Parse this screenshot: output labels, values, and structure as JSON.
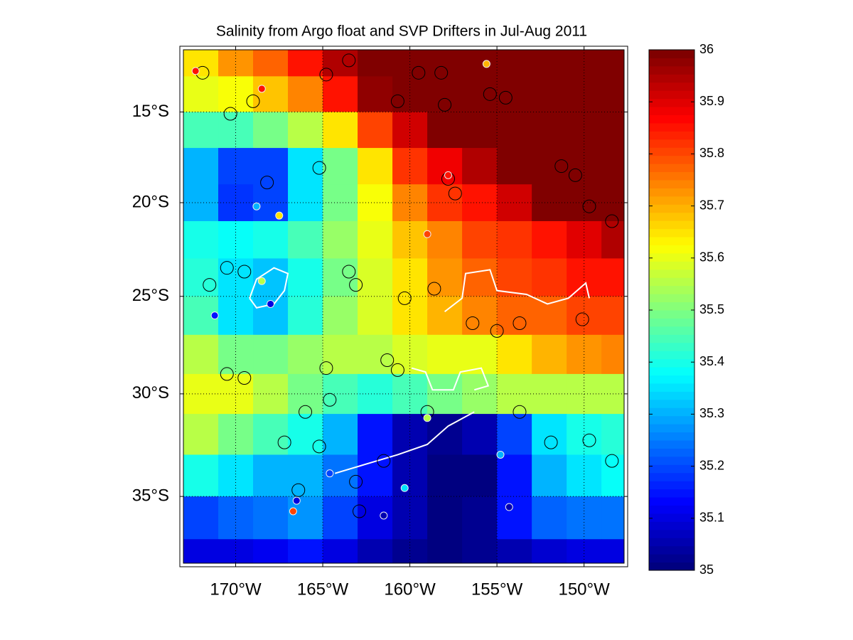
{
  "chart_data": {
    "type": "gridded-map",
    "title": "Salinity from Argo float and SVP Drifters in Jul-Aug 2011",
    "xlim": [
      -173,
      -147.7
    ],
    "ylim": [
      -38.1,
      -11.5
    ],
    "xticks": [
      {
        "value": -170,
        "label": "170°W"
      },
      {
        "value": -165,
        "label": "165°W"
      },
      {
        "value": -160,
        "label": "160°W"
      },
      {
        "value": -155,
        "label": "155°W"
      },
      {
        "value": -150,
        "label": "150°W"
      }
    ],
    "yticks": [
      {
        "value": -15,
        "label": "15°S"
      },
      {
        "value": -20,
        "label": "20°S"
      },
      {
        "value": -25,
        "label": "25°S"
      },
      {
        "value": -30,
        "label": "30°S"
      },
      {
        "value": -35,
        "label": "35°S"
      }
    ],
    "grid": true,
    "colormap": "jet",
    "clim": [
      35,
      36
    ],
    "cticks": [
      35,
      35.1,
      35.2,
      35.3,
      35.4,
      35.5,
      35.6,
      35.7,
      35.8,
      35.9,
      36
    ],
    "x": [
      -172,
      -170,
      -168,
      -166,
      -164,
      -162,
      -160,
      -158,
      -156,
      -154,
      -152,
      -150,
      -148
    ],
    "y": [
      -12,
      -14,
      -16,
      -18,
      -20,
      -22,
      -24,
      -26,
      -28,
      -30,
      -32,
      -34,
      -36,
      -38
    ],
    "z": [
      [
        35.65,
        35.72,
        35.78,
        35.85,
        35.95,
        36,
        36,
        36,
        36,
        36,
        36,
        36,
        36
      ],
      [
        35.6,
        35.62,
        35.68,
        35.75,
        35.85,
        35.97,
        36,
        36,
        36,
        36,
        36,
        36,
        36
      ],
      [
        35.45,
        35.45,
        35.5,
        35.55,
        35.65,
        35.8,
        35.92,
        36,
        36,
        36,
        36,
        36,
        36
      ],
      [
        35.3,
        35.2,
        35.2,
        35.35,
        35.5,
        35.65,
        35.82,
        35.88,
        35.95,
        36,
        36,
        36,
        36
      ],
      [
        35.3,
        35.18,
        35.2,
        35.35,
        35.5,
        35.62,
        35.75,
        35.82,
        35.85,
        35.92,
        36,
        36,
        36
      ],
      [
        35.4,
        35.38,
        35.4,
        35.45,
        35.52,
        35.6,
        35.68,
        35.75,
        35.8,
        35.82,
        35.85,
        35.9,
        35.95
      ],
      [
        35.42,
        35.35,
        35.32,
        35.4,
        35.5,
        35.58,
        35.65,
        35.72,
        35.78,
        35.8,
        35.82,
        35.85,
        35.85
      ],
      [
        35.45,
        35.35,
        35.32,
        35.42,
        35.52,
        35.58,
        35.65,
        35.7,
        35.75,
        35.77,
        35.78,
        35.8,
        35.8
      ],
      [
        35.55,
        35.5,
        35.5,
        35.52,
        35.55,
        35.55,
        35.58,
        35.6,
        35.6,
        35.65,
        35.7,
        35.72,
        35.75
      ],
      [
        35.6,
        35.6,
        35.55,
        35.5,
        35.45,
        35.42,
        35.45,
        35.5,
        35.52,
        35.55,
        35.55,
        35.55,
        35.55
      ],
      [
        35.55,
        35.5,
        35.45,
        35.4,
        35.3,
        35.15,
        35.05,
        35.02,
        35.05,
        35.2,
        35.35,
        35.4,
        35.42
      ],
      [
        35.4,
        35.35,
        35.3,
        35.3,
        35.25,
        35.15,
        35.05,
        35.0,
        35.0,
        35.15,
        35.3,
        35.35,
        35.38
      ],
      [
        35.2,
        35.22,
        35.25,
        35.28,
        35.2,
        35.1,
        35.05,
        35.0,
        35.02,
        35.15,
        35.22,
        35.25,
        35.25
      ],
      [
        35.1,
        35.1,
        35.12,
        35.15,
        35.1,
        35.05,
        35.02,
        35.0,
        35.02,
        35.05,
        35.08,
        35.1,
        35.1
      ]
    ],
    "floats": {
      "x": [
        -171.9,
        -169.0,
        -170.3,
        -164.8,
        -163.5,
        -159.5,
        -158.2,
        -160.7,
        -158.0,
        -155.4,
        -154.5,
        -151.3,
        -150.5,
        -149.7,
        -148.4,
        -157.8,
        -157.4,
        -165.2,
        -168.2,
        -163.5,
        -163.1,
        -170.5,
        -169.5,
        -171.5,
        -160.3,
        -158.6,
        -156.4,
        -155.0,
        -153.7,
        -150.1,
        -170.5,
        -169.5,
        -164.8,
        -161.3,
        -160.7,
        -164.6,
        -166.0,
        -167.2,
        -165.2,
        -166.4,
        -163.1,
        -161.5,
        -153.7,
        -151.9,
        -149.7,
        -148.4,
        -162.9,
        -159.0
      ],
      "y": [
        -12.8,
        -14.4,
        -15.1,
        -12.9,
        -12.1,
        -12.8,
        -12.8,
        -14.4,
        -14.6,
        -14.0,
        -14.2,
        -18.0,
        -18.5,
        -20.2,
        -21.0,
        -18.7,
        -19.5,
        -18.1,
        -18.9,
        -23.7,
        -24.4,
        -23.5,
        -23.7,
        -24.4,
        -25.1,
        -24.6,
        -26.4,
        -26.8,
        -26.4,
        -26.2,
        -29.0,
        -29.2,
        -28.7,
        -28.3,
        -28.8,
        -30.3,
        -30.9,
        -32.4,
        -32.6,
        -34.7,
        -34.3,
        -33.3,
        -30.9,
        -32.4,
        -32.3,
        -33.3,
        -35.7,
        -30.9
      ]
    },
    "samples": {
      "x": [
        -172.3,
        -168.5,
        -155.6,
        -167.5,
        -168.8,
        -171.2,
        -168.0,
        -168.5,
        -159.0,
        -157.8,
        -166.7,
        -160.3,
        -159.0,
        -164.6,
        -154.3,
        -154.8,
        -166.5,
        -161.5
      ],
      "y": [
        -12.7,
        -13.7,
        -12.3,
        -20.7,
        -20.2,
        -26.0,
        -25.4,
        -24.2,
        -21.7,
        -18.5,
        -35.7,
        -34.6,
        -31.2,
        -33.9,
        -35.5,
        -33.0,
        -35.2,
        -35.9
      ],
      "values": [
        35.85,
        35.85,
        35.7,
        35.65,
        35.3,
        35.15,
        35.1,
        35.55,
        35.8,
        35.85,
        35.8,
        35.35,
        35.55,
        35.2,
        35.05,
        35.3,
        35.1,
        35.05
      ]
    },
    "tracks": [
      {
        "x": [
          -169.2,
          -168.8,
          -167.8,
          -167.0,
          -167.2,
          -167.8,
          -168.8,
          -169.2
        ],
        "y": [
          -25.1,
          -24.1,
          -23.5,
          -23.8,
          -24.7,
          -25.4,
          -25.6,
          -25.1
        ]
      },
      {
        "x": [
          -158.0,
          -157.0,
          -156.8,
          -155.4,
          -155.0,
          -153.3,
          -152.1,
          -150.9,
          -149.9,
          -149.7
        ],
        "y": [
          -25.8,
          -25.1,
          -23.8,
          -23.6,
          -24.7,
          -24.9,
          -25.4,
          -25.1,
          -24.3,
          -25.1
        ]
      },
      {
        "x": [
          -159.9,
          -159.1,
          -158.7,
          -157.5,
          -157.1,
          -155.9,
          -155.5,
          -156.3
        ],
        "y": [
          -28.7,
          -28.9,
          -29.8,
          -29.8,
          -28.9,
          -28.7,
          -29.6,
          -29.8
        ]
      },
      {
        "x": [
          -164.3,
          -162.3,
          -160.7,
          -159.0,
          -157.8,
          -156.3
        ],
        "y": [
          -33.9,
          -33.4,
          -33.0,
          -32.5,
          -31.6,
          -30.9
        ]
      }
    ]
  }
}
